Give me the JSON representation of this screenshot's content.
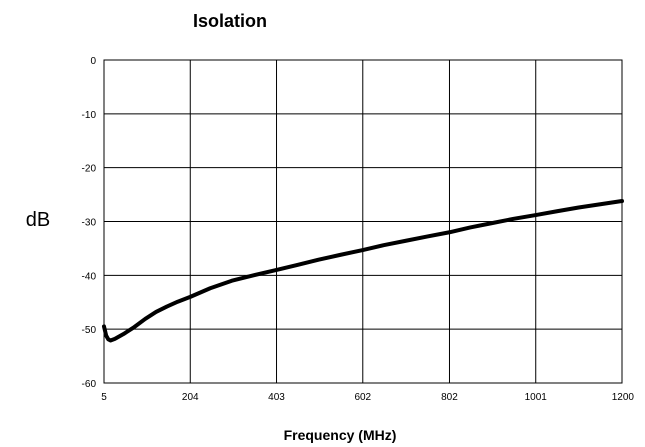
{
  "chart_data": {
    "type": "line",
    "title": "Isolation",
    "xlabel": "Frequency (MHz)",
    "ylabel": "dB",
    "x_ticks": [
      "5",
      "204",
      "403",
      "602",
      "802",
      "1001",
      "1200"
    ],
    "y_ticks": [
      "0",
      "-10",
      "-20",
      "-30",
      "-40",
      "-50",
      "-60"
    ],
    "xlim": [
      5,
      1200
    ],
    "ylim": [
      -60,
      0
    ],
    "grid": true,
    "legend": "none",
    "line_color": "#000000",
    "series": [
      {
        "x": [
          5,
          10,
          15,
          20,
          30,
          50,
          75,
          100,
          125,
          150,
          175,
          204,
          250,
          300,
          350,
          403,
          450,
          500,
          550,
          602,
          650,
          700,
          750,
          802,
          850,
          900,
          950,
          1001,
          1050,
          1100,
          1150,
          1200
        ],
        "y": [
          -49.5,
          -51.2,
          -51.9,
          -52.1,
          -51.8,
          -50.9,
          -49.6,
          -48.1,
          -46.8,
          -45.8,
          -44.9,
          -44.0,
          -42.4,
          -41.0,
          -40.0,
          -39.0,
          -38.1,
          -37.1,
          -36.2,
          -35.3,
          -34.4,
          -33.6,
          -32.8,
          -32.0,
          -31.1,
          -30.3,
          -29.5,
          -28.8,
          -28.1,
          -27.4,
          -26.8,
          -26.2
        ]
      }
    ]
  }
}
